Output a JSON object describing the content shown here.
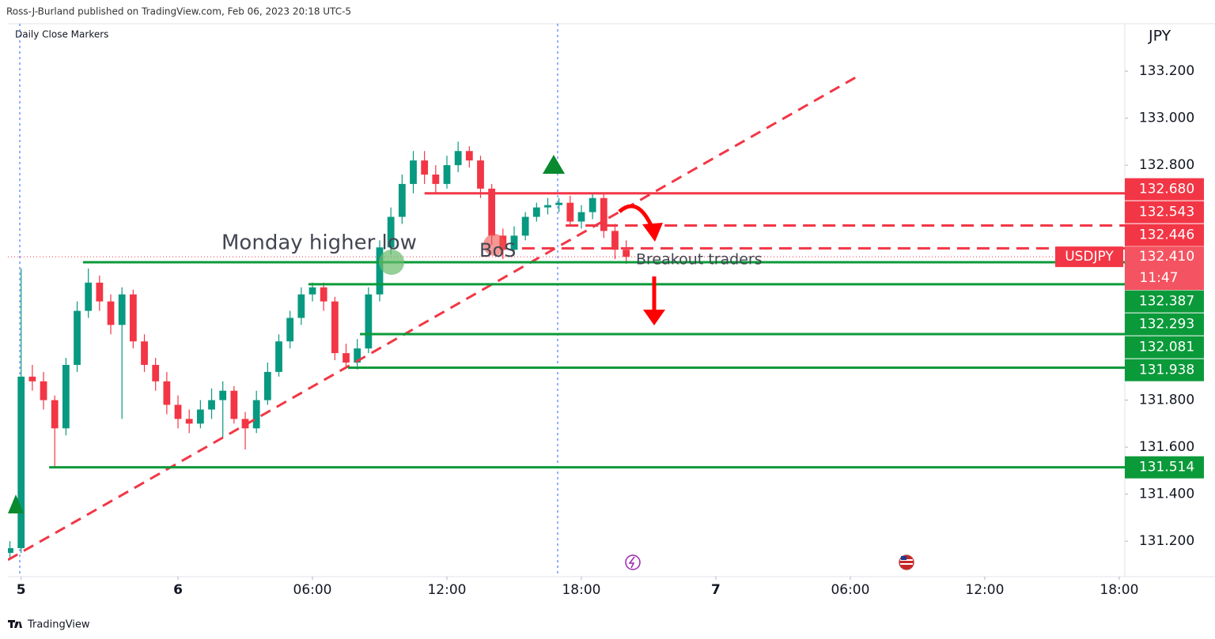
{
  "header": "Ross-J-Burland published on TradingView.com, Feb 06, 2023 20:18 UTC-5",
  "footer": "TradingView",
  "chart_data": {
    "type": "candlestick",
    "indicator": "Daily Close Markers",
    "currency": "JPY",
    "symbol": "USDJPY",
    "countdown": "11:47",
    "current_price": {
      "value": 132.41,
      "label": "132.410"
    },
    "up_color": "#089981",
    "down_color": "#f23645",
    "x": [
      -7.5,
      -7,
      -6.5,
      -6,
      -5.5,
      -5,
      -4.5,
      -4,
      -3.5,
      -3,
      -2.5,
      -2,
      -1.5,
      -1,
      -0.5,
      0,
      0.5,
      1,
      1.5,
      2,
      2.5,
      3,
      3.5,
      4,
      4.5,
      5,
      5.5,
      6,
      6.5,
      7,
      7.5,
      8,
      8.5,
      9,
      9.5,
      10,
      10.5,
      11,
      11.5,
      12,
      12.5,
      13,
      13.5,
      14,
      14.5,
      15,
      15.5,
      16,
      16.5,
      17,
      17.5,
      18,
      18.5,
      19,
      19.5,
      20
    ],
    "open": [
      131.15,
      131.17,
      131.9,
      131.88,
      131.8,
      131.68,
      131.95,
      132.18,
      132.3,
      132.22,
      132.12,
      132.25,
      132.05,
      131.95,
      131.88,
      131.78,
      131.72,
      131.7,
      131.76,
      131.8,
      131.84,
      131.72,
      131.68,
      131.8,
      131.92,
      132.05,
      132.15,
      132.25,
      132.28,
      132.22,
      132.0,
      131.96,
      132.02,
      132.25,
      132.45,
      132.58,
      132.72,
      132.82,
      132.76,
      132.72,
      132.8,
      132.86,
      132.82,
      132.7,
      132.5,
      132.44,
      132.5,
      132.58,
      132.62,
      132.63,
      132.64,
      132.56,
      132.6,
      132.66,
      132.52,
      132.44
    ],
    "high": [
      131.2,
      132.36,
      131.95,
      131.92,
      131.82,
      131.98,
      132.22,
      132.36,
      132.33,
      132.25,
      132.28,
      132.27,
      132.08,
      131.98,
      131.92,
      131.82,
      131.76,
      131.8,
      131.85,
      131.88,
      131.86,
      131.75,
      131.84,
      131.96,
      132.08,
      132.18,
      132.28,
      132.3,
      132.3,
      132.24,
      132.04,
      132.06,
      132.28,
      132.48,
      132.62,
      132.76,
      132.86,
      132.86,
      132.8,
      132.84,
      132.9,
      132.88,
      132.84,
      132.72,
      132.53,
      132.54,
      132.6,
      132.64,
      132.66,
      132.66,
      132.67,
      132.63,
      132.68,
      132.68,
      132.55,
      132.48
    ],
    "low": [
      131.13,
      131.15,
      131.84,
      131.76,
      131.51,
      131.65,
      131.92,
      132.15,
      132.18,
      132.08,
      131.72,
      132.02,
      131.92,
      131.84,
      131.74,
      131.68,
      131.66,
      131.68,
      131.72,
      131.64,
      131.7,
      131.59,
      131.66,
      131.78,
      131.9,
      132.02,
      132.12,
      132.22,
      132.18,
      131.97,
      131.94,
      131.93,
      132.0,
      132.22,
      132.42,
      132.55,
      132.68,
      132.72,
      132.68,
      132.7,
      132.77,
      132.79,
      132.66,
      132.46,
      132.4,
      132.42,
      132.48,
      132.56,
      132.59,
      132.6,
      132.54,
      132.53,
      132.57,
      132.49,
      132.4,
      132.38
    ],
    "close": [
      131.17,
      131.9,
      131.88,
      131.8,
      131.68,
      131.95,
      132.18,
      132.3,
      132.22,
      132.12,
      132.25,
      132.05,
      131.95,
      131.88,
      131.78,
      131.72,
      131.7,
      131.76,
      131.8,
      131.84,
      131.72,
      131.68,
      131.8,
      131.92,
      132.05,
      132.15,
      132.25,
      132.28,
      132.22,
      132.0,
      131.96,
      132.02,
      132.25,
      132.45,
      132.58,
      132.72,
      132.82,
      132.76,
      132.72,
      132.8,
      132.86,
      132.82,
      132.7,
      132.5,
      132.44,
      132.5,
      132.58,
      132.62,
      132.63,
      132.64,
      132.56,
      132.6,
      132.66,
      132.52,
      132.44,
      132.41
    ],
    "xlim": [
      -7.59,
      42.25
    ],
    "xticks": [
      {
        "value": -7,
        "label": "5"
      },
      6,
      {
        "value": 0,
        "label": "6"
      },
      {
        "value": 6,
        "label": "06:00"
      },
      {
        "value": 12,
        "label": "12:00"
      },
      {
        "value": 18,
        "label": "18:00"
      },
      {
        "value": 24,
        "label": "7"
      },
      {
        "value": 30,
        "label": "06:00"
      },
      {
        "value": 36,
        "label": "12:00"
      },
      {
        "value": 42,
        "label": "18:00"
      }
    ],
    "ylim": [
      131.049,
      133.402
    ],
    "yticks": [
      {
        "value": 133.2,
        "label": "133.200"
      },
      {
        "value": 133.0,
        "label": "133.000"
      },
      {
        "value": 132.8,
        "label": "132.800"
      },
      {
        "value": 131.8,
        "label": "131.800"
      },
      {
        "value": 131.6,
        "label": "131.600"
      },
      {
        "value": 131.4,
        "label": "131.400"
      },
      {
        "value": 131.2,
        "label": "131.200"
      }
    ],
    "levels": [
      {
        "value": 132.68,
        "label": "132.680",
        "color": "#f23645",
        "style": "solid",
        "start": 11.0
      },
      {
        "value": 132.543,
        "label": "132.543",
        "color": "#f23645",
        "style": "dashed",
        "start": 17.3
      },
      {
        "value": 132.446,
        "label": "132.446",
        "color": "#f23645",
        "style": "dashed",
        "start": 15.35
      },
      {
        "value": 132.387,
        "label": "132.387",
        "color": "#0b9a3a",
        "style": "solid",
        "start": -4.24
      },
      {
        "value": 132.293,
        "label": "132.293",
        "color": "#0b9a3a",
        "style": "solid",
        "start": 5.82
      },
      {
        "value": 132.081,
        "label": "132.081",
        "color": "#0b9a3a",
        "style": "solid",
        "start": 8.12
      },
      {
        "value": 131.938,
        "label": "131.938",
        "color": "#0b9a3a",
        "style": "solid",
        "start": 7.59
      },
      {
        "value": 131.514,
        "label": "131.514",
        "color": "#0b9a3a",
        "style": "solid",
        "start": -5.75
      }
    ],
    "trendline": {
      "x": [
        -7.59,
        30.36
      ],
      "y": [
        131.12,
        133.18
      ],
      "color": "#f23645"
    },
    "annotations": [
      "Monday higher low",
      "BoS",
      "Breakout traders"
    ]
  }
}
